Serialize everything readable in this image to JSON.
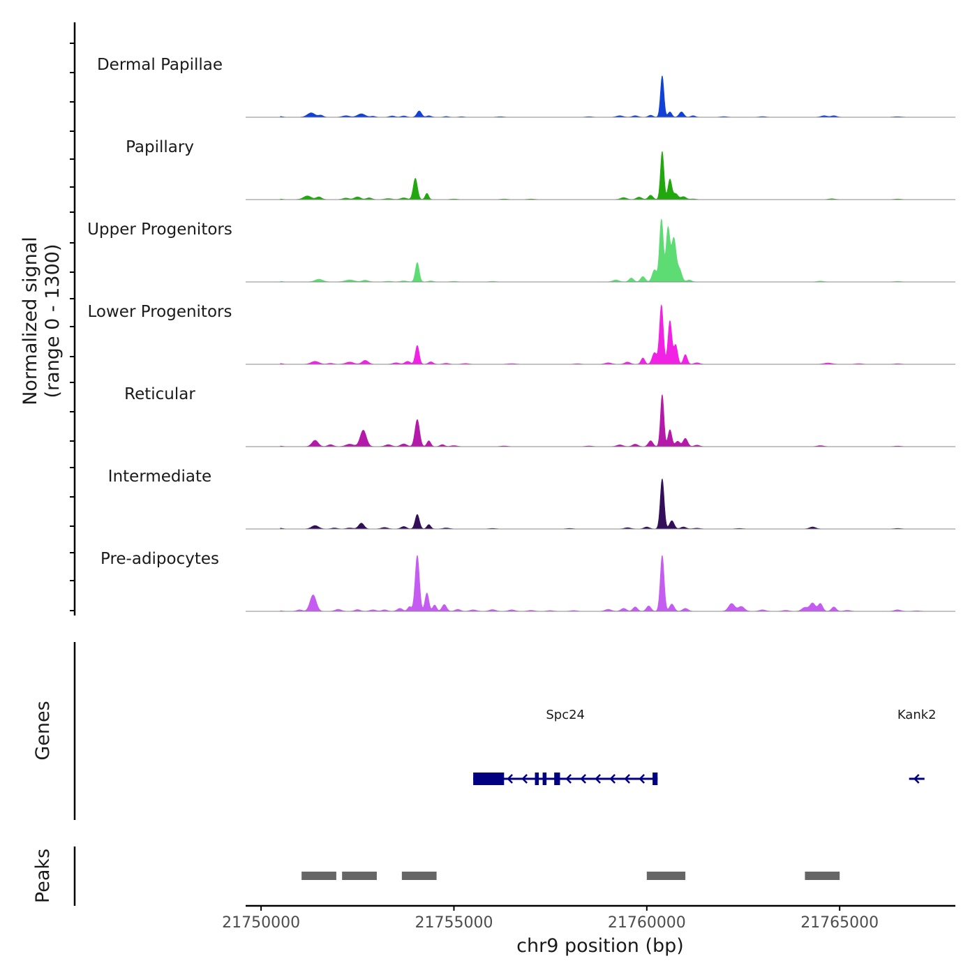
{
  "chart_data": {
    "type": "area",
    "title": "",
    "ylabel_line1": "Normalized signal",
    "ylabel_line2": "(range 0 - 1300)",
    "xlabel": "chr9 position (bp)",
    "xlim": [
      21749600,
      21768000
    ],
    "ylim": [
      0,
      1300
    ],
    "x_ticks": [
      21750000,
      21755000,
      21760000,
      21765000
    ],
    "x_tick_labels": [
      "21750000",
      "21755000",
      "21760000",
      "21765000"
    ],
    "tracks": [
      {
        "name": "Dermal Papillae",
        "color": "#1241d8",
        "peaks": [
          [
            21750500,
            15,
            60
          ],
          [
            21751300,
            90,
            100
          ],
          [
            21751550,
            40,
            60
          ],
          [
            21752200,
            30,
            90
          ],
          [
            21752600,
            70,
            100
          ],
          [
            21752900,
            20,
            60
          ],
          [
            21753400,
            25,
            70
          ],
          [
            21753700,
            25,
            70
          ],
          [
            21754100,
            130,
            60
          ],
          [
            21754350,
            30,
            60
          ],
          [
            21754800,
            15,
            60
          ],
          [
            21755200,
            10,
            60
          ],
          [
            21756200,
            10,
            80
          ],
          [
            21758500,
            10,
            80
          ],
          [
            21759300,
            30,
            80
          ],
          [
            21759700,
            30,
            70
          ],
          [
            21760100,
            40,
            60
          ],
          [
            21760400,
            860,
            45
          ],
          [
            21760600,
            110,
            50
          ],
          [
            21760900,
            110,
            60
          ],
          [
            21761200,
            30,
            60
          ],
          [
            21762000,
            12,
            80
          ],
          [
            21763000,
            12,
            80
          ],
          [
            21764600,
            30,
            80
          ],
          [
            21764850,
            30,
            70
          ],
          [
            21766500,
            10,
            100
          ]
        ]
      },
      {
        "name": "Papillary",
        "color": "#20a80e",
        "peaks": [
          [
            21750500,
            10,
            60
          ],
          [
            21751200,
            75,
            100
          ],
          [
            21751500,
            55,
            70
          ],
          [
            21752200,
            30,
            80
          ],
          [
            21752500,
            55,
            80
          ],
          [
            21752800,
            35,
            70
          ],
          [
            21753300,
            20,
            90
          ],
          [
            21753700,
            35,
            80
          ],
          [
            21754000,
            440,
            55
          ],
          [
            21754300,
            130,
            45
          ],
          [
            21755000,
            10,
            80
          ],
          [
            21756300,
            10,
            80
          ],
          [
            21757000,
            10,
            80
          ],
          [
            21759400,
            40,
            80
          ],
          [
            21759800,
            50,
            70
          ],
          [
            21760100,
            90,
            60
          ],
          [
            21760400,
            1000,
            45
          ],
          [
            21760600,
            420,
            50
          ],
          [
            21760750,
            120,
            60
          ],
          [
            21760950,
            60,
            70
          ],
          [
            21761200,
            12,
            70
          ],
          [
            21764800,
            15,
            80
          ],
          [
            21766500,
            10,
            80
          ]
        ]
      },
      {
        "name": "Upper Progenitors",
        "color": "#5cdc73",
        "peaks": [
          [
            21750500,
            10,
            60
          ],
          [
            21751500,
            55,
            100
          ],
          [
            21752300,
            40,
            120
          ],
          [
            21752700,
            35,
            80
          ],
          [
            21753300,
            12,
            80
          ],
          [
            21753700,
            20,
            80
          ],
          [
            21754050,
            400,
            50
          ],
          [
            21754400,
            20,
            60
          ],
          [
            21755000,
            10,
            80
          ],
          [
            21756000,
            10,
            80
          ],
          [
            21759200,
            40,
            80
          ],
          [
            21759600,
            80,
            60
          ],
          [
            21759900,
            110,
            60
          ],
          [
            21760200,
            250,
            60
          ],
          [
            21760380,
            1300,
            50
          ],
          [
            21760550,
            1100,
            50
          ],
          [
            21760700,
            900,
            60
          ],
          [
            21760850,
            250,
            60
          ],
          [
            21761100,
            40,
            60
          ],
          [
            21764500,
            15,
            80
          ],
          [
            21766500,
            10,
            80
          ]
        ]
      },
      {
        "name": "Lower Progenitors",
        "color": "#f222e4",
        "peaks": [
          [
            21750500,
            15,
            60
          ],
          [
            21751400,
            60,
            100
          ],
          [
            21751800,
            20,
            70
          ],
          [
            21752300,
            45,
            100
          ],
          [
            21752700,
            80,
            80
          ],
          [
            21753500,
            30,
            80
          ],
          [
            21753800,
            60,
            70
          ],
          [
            21754050,
            390,
            50
          ],
          [
            21754400,
            50,
            60
          ],
          [
            21754800,
            20,
            70
          ],
          [
            21755300,
            15,
            80
          ],
          [
            21756500,
            12,
            100
          ],
          [
            21758200,
            10,
            80
          ],
          [
            21759000,
            30,
            80
          ],
          [
            21759500,
            45,
            70
          ],
          [
            21759900,
            130,
            50
          ],
          [
            21760200,
            240,
            60
          ],
          [
            21760380,
            1230,
            50
          ],
          [
            21760600,
            900,
            50
          ],
          [
            21760750,
            400,
            50
          ],
          [
            21761000,
            200,
            50
          ],
          [
            21761300,
            30,
            70
          ],
          [
            21764700,
            25,
            100
          ],
          [
            21765500,
            12,
            80
          ],
          [
            21766500,
            10,
            80
          ]
        ]
      },
      {
        "name": "Reticular",
        "color": "#b519a9",
        "peaks": [
          [
            21750500,
            10,
            60
          ],
          [
            21751400,
            130,
            80
          ],
          [
            21751800,
            40,
            70
          ],
          [
            21752300,
            50,
            100
          ],
          [
            21752650,
            340,
            80
          ],
          [
            21753300,
            40,
            80
          ],
          [
            21753700,
            55,
            80
          ],
          [
            21754050,
            560,
            60
          ],
          [
            21754350,
            120,
            50
          ],
          [
            21754700,
            40,
            60
          ],
          [
            21755000,
            20,
            80
          ],
          [
            21756300,
            12,
            80
          ],
          [
            21758500,
            12,
            80
          ],
          [
            21759300,
            35,
            80
          ],
          [
            21759700,
            50,
            70
          ],
          [
            21760100,
            120,
            60
          ],
          [
            21760400,
            1080,
            45
          ],
          [
            21760600,
            350,
            50
          ],
          [
            21760800,
            110,
            60
          ],
          [
            21761000,
            170,
            60
          ],
          [
            21761300,
            30,
            70
          ],
          [
            21764500,
            20,
            80
          ],
          [
            21766500,
            10,
            80
          ]
        ]
      },
      {
        "name": "Intermediate",
        "color": "#330f5a",
        "peaks": [
          [
            21750500,
            15,
            60
          ],
          [
            21751400,
            70,
            90
          ],
          [
            21751900,
            20,
            70
          ],
          [
            21752300,
            20,
            80
          ],
          [
            21752600,
            120,
            70
          ],
          [
            21753200,
            30,
            80
          ],
          [
            21753700,
            50,
            70
          ],
          [
            21754050,
            300,
            55
          ],
          [
            21754350,
            90,
            50
          ],
          [
            21754800,
            20,
            80
          ],
          [
            21756000,
            10,
            80
          ],
          [
            21758000,
            10,
            80
          ],
          [
            21759500,
            25,
            80
          ],
          [
            21760000,
            40,
            70
          ],
          [
            21760400,
            1040,
            50
          ],
          [
            21760650,
            170,
            60
          ],
          [
            21760950,
            40,
            70
          ],
          [
            21761300,
            15,
            80
          ],
          [
            21762400,
            10,
            80
          ],
          [
            21764300,
            40,
            80
          ],
          [
            21766500,
            10,
            80
          ]
        ]
      },
      {
        "name": "Pre-adipocytes",
        "color": "#c55cf2",
        "peaks": [
          [
            21750500,
            10,
            60
          ],
          [
            21751000,
            30,
            70
          ],
          [
            21751350,
            340,
            80
          ],
          [
            21752000,
            40,
            80
          ],
          [
            21752500,
            35,
            70
          ],
          [
            21752900,
            30,
            80
          ],
          [
            21753200,
            30,
            70
          ],
          [
            21753600,
            60,
            70
          ],
          [
            21753850,
            95,
            50
          ],
          [
            21754050,
            1160,
            55
          ],
          [
            21754300,
            380,
            50
          ],
          [
            21754500,
            130,
            50
          ],
          [
            21754750,
            140,
            60
          ],
          [
            21755100,
            40,
            70
          ],
          [
            21755500,
            30,
            80
          ],
          [
            21756000,
            35,
            80
          ],
          [
            21756500,
            30,
            80
          ],
          [
            21757000,
            20,
            80
          ],
          [
            21757500,
            15,
            80
          ],
          [
            21758100,
            15,
            80
          ],
          [
            21759000,
            40,
            80
          ],
          [
            21759400,
            60,
            70
          ],
          [
            21759700,
            90,
            60
          ],
          [
            21760050,
            110,
            60
          ],
          [
            21760400,
            1160,
            50
          ],
          [
            21760650,
            150,
            60
          ],
          [
            21761000,
            60,
            70
          ],
          [
            21762200,
            160,
            80
          ],
          [
            21762450,
            100,
            80
          ],
          [
            21763000,
            30,
            80
          ],
          [
            21763600,
            20,
            80
          ],
          [
            21764100,
            80,
            80
          ],
          [
            21764300,
            170,
            70
          ],
          [
            21764500,
            160,
            60
          ],
          [
            21764850,
            90,
            60
          ],
          [
            21765200,
            20,
            80
          ],
          [
            21766500,
            30,
            80
          ],
          [
            21767000,
            10,
            80
          ]
        ]
      }
    ],
    "genes_label": "Genes",
    "genes": [
      {
        "name": "Spc24",
        "start": 21755500,
        "end": 21760280,
        "strand": "-",
        "exons": [
          [
            21755500,
            21756300
          ],
          [
            21757100,
            21757200
          ],
          [
            21757300,
            21757400
          ],
          [
            21757600,
            21757750
          ],
          [
            21760150,
            21760280
          ]
        ]
      },
      {
        "name": "Kank2",
        "start": 21766800,
        "end": 21767200,
        "strand": "-",
        "exons": []
      }
    ],
    "peaks_label": "Peaks",
    "peaks": [
      [
        21751050,
        21751950
      ],
      [
        21752100,
        21753000
      ],
      [
        21753650,
        21754550
      ],
      [
        21760000,
        21761000
      ],
      [
        21764100,
        21765000
      ]
    ]
  }
}
